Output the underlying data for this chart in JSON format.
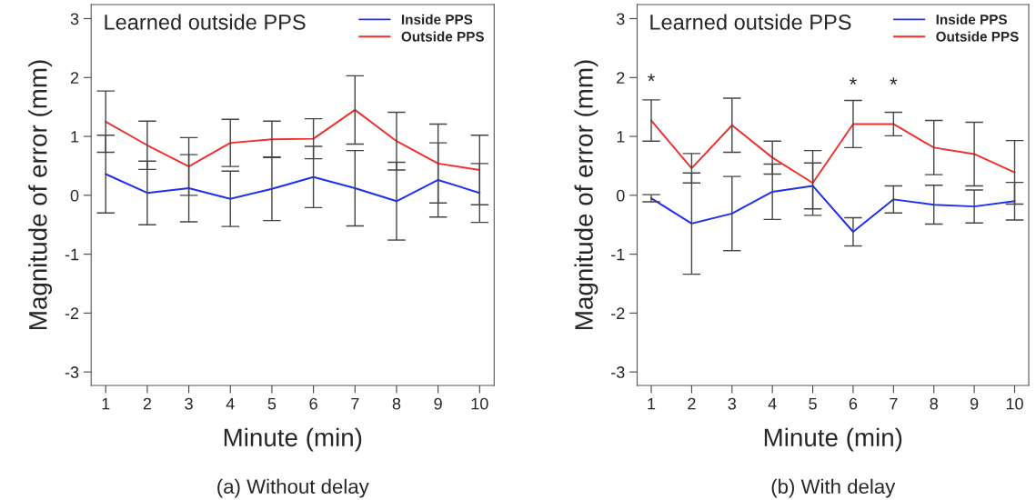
{
  "chart_data": [
    {
      "type": "line",
      "title": "Learned outside PPS",
      "xlabel": "Minute (min)",
      "ylabel": "Magnitude of error (mm)",
      "annotations": [
        "(a) Without delay"
      ],
      "x": [
        1,
        2,
        3,
        4,
        5,
        6,
        7,
        8,
        9,
        10
      ],
      "xlim": [
        0.65,
        10.35
      ],
      "xticks": [
        1,
        2,
        3,
        4,
        5,
        6,
        7,
        8,
        9,
        10
      ],
      "ylim": [
        -3.23,
        3.24
      ],
      "yticks": [
        -3,
        -2,
        -1,
        0,
        1,
        2,
        3
      ],
      "legend": "top right",
      "grid": false,
      "marker": "none",
      "line_style": "solid",
      "series": [
        {
          "name": "Inside PPS",
          "color": "#1f2ff0",
          "values": [
            0.36,
            0.04,
            0.12,
            -0.06,
            0.11,
            0.31,
            0.12,
            -0.1,
            0.26,
            0.04
          ],
          "errors": [
            0.66,
            0.54,
            0.57,
            0.47,
            0.54,
            0.52,
            0.64,
            0.66,
            0.63,
            0.5
          ]
        },
        {
          "name": "Outside PPS",
          "color": "#f0302a",
          "values": [
            1.25,
            0.85,
            0.49,
            0.89,
            0.95,
            0.96,
            1.45,
            0.92,
            0.54,
            0.43
          ],
          "errors": [
            0.52,
            0.41,
            0.49,
            0.4,
            0.31,
            0.34,
            0.58,
            0.49,
            0.67,
            0.59
          ]
        }
      ]
    },
    {
      "type": "line",
      "title": "Learned outside PPS",
      "xlabel": "Minute (min)",
      "ylabel": "Magnitude of error (mm)",
      "annotations": [
        "(b) With delay",
        {
          "text": "*",
          "x": 1,
          "y": 1.27
        },
        {
          "text": "*",
          "x": 6,
          "y": 1.21
        },
        {
          "text": "*",
          "x": 7,
          "y": 1.21
        }
      ],
      "x": [
        1,
        2,
        3,
        4,
        5,
        6,
        7,
        8,
        9,
        10
      ],
      "xlim": [
        0.65,
        10.35
      ],
      "xticks": [
        1,
        2,
        3,
        4,
        5,
        6,
        7,
        8,
        9,
        10
      ],
      "ylim": [
        -3.23,
        3.24
      ],
      "yticks": [
        -3,
        -2,
        -1,
        0,
        1,
        2,
        3
      ],
      "legend": "top right",
      "grid": false,
      "marker": "none",
      "line_style": "solid",
      "series": [
        {
          "name": "Inside PPS",
          "color": "#1f2ff0",
          "values": [
            -0.05,
            -0.48,
            -0.31,
            0.06,
            0.16,
            -0.62,
            -0.07,
            -0.16,
            -0.19,
            -0.1
          ],
          "errors": [
            0.06,
            0.86,
            0.63,
            0.47,
            0.39,
            0.24,
            0.23,
            0.33,
            0.28,
            0.32
          ]
        },
        {
          "name": "Outside PPS",
          "color": "#f0302a",
          "values": [
            1.27,
            0.46,
            1.19,
            0.64,
            0.21,
            1.21,
            1.21,
            0.81,
            0.7,
            0.39
          ],
          "errors": [
            0.35,
            0.25,
            0.46,
            0.28,
            0.55,
            0.4,
            0.2,
            0.46,
            0.54,
            0.54
          ]
        }
      ]
    }
  ]
}
